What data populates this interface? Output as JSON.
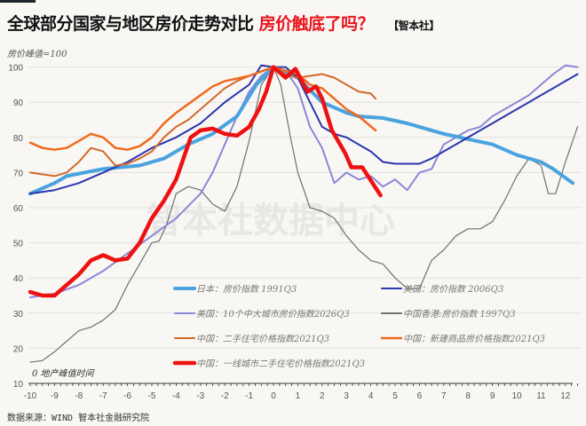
{
  "header": {
    "title_main": "全球部分国家与地区房价走势对比",
    "title_highlight": "房价触底了吗？",
    "title_tag": "【智本社】"
  },
  "unit_label": "房价峰值=100",
  "x_note": "0 地产峰值时间",
  "watermark": "智本社数据中心",
  "source": "数据来源：WIND 智本社金融研究院",
  "chart_data": {
    "type": "line",
    "title": "全球部分国家与地区房价走势对比 房价触底了吗？",
    "xlabel": "0 地产峰值时间",
    "ylabel": "房价峰值=100",
    "xlim": [
      -10,
      12.5
    ],
    "ylim": [
      10,
      100
    ],
    "xticks": [
      -10,
      -9,
      -8,
      -7,
      -6,
      -5,
      -4,
      -3,
      -2,
      -1,
      0,
      1,
      2,
      3,
      4,
      5,
      6,
      7,
      8,
      9,
      10,
      11,
      12
    ],
    "yticks": [
      10,
      20,
      30,
      40,
      50,
      60,
      70,
      80,
      90,
      100
    ],
    "grid": true,
    "legend_position": "bottom-center",
    "series": [
      {
        "name": "日本：房价指数 1991Q3",
        "color": "#4aa3df",
        "width": 4,
        "points": [
          [
            -10,
            64
          ],
          [
            -9,
            67
          ],
          [
            -8.5,
            69
          ],
          [
            -7,
            71
          ],
          [
            -5.5,
            72
          ],
          [
            -4.5,
            74
          ],
          [
            -3.5,
            78
          ],
          [
            -2.5,
            81
          ],
          [
            -1.5,
            86
          ],
          [
            -0.7,
            95
          ],
          [
            0,
            100
          ],
          [
            1,
            97
          ],
          [
            2,
            90
          ],
          [
            3,
            87
          ],
          [
            3.5,
            86
          ],
          [
            4.5,
            85.5
          ],
          [
            5.5,
            84
          ],
          [
            6.5,
            82
          ],
          [
            7,
            81
          ],
          [
            8,
            79.5
          ],
          [
            9,
            78
          ],
          [
            10,
            75
          ],
          [
            11,
            73
          ],
          [
            11.5,
            71
          ],
          [
            12.3,
            67
          ]
        ]
      },
      {
        "name": "美国：房价指数 2006Q3",
        "color": "#2b35b0",
        "width": 2,
        "points": [
          [
            -10,
            64
          ],
          [
            -9,
            65
          ],
          [
            -8,
            67
          ],
          [
            -7,
            70
          ],
          [
            -6,
            73
          ],
          [
            -5,
            77
          ],
          [
            -4,
            80
          ],
          [
            -3,
            84
          ],
          [
            -2,
            90
          ],
          [
            -1,
            95
          ],
          [
            -0.5,
            100.5
          ],
          [
            0,
            100
          ],
          [
            0.5,
            100
          ],
          [
            1,
            97
          ],
          [
            1.5,
            90
          ],
          [
            2,
            83
          ],
          [
            2.5,
            81
          ],
          [
            3,
            80
          ],
          [
            3.5,
            78
          ],
          [
            4,
            76
          ],
          [
            4.5,
            73
          ],
          [
            5,
            72.5
          ],
          [
            6,
            72.5
          ],
          [
            6.5,
            74
          ],
          [
            7,
            76
          ],
          [
            7.5,
            78
          ],
          [
            8,
            80
          ],
          [
            8.5,
            82
          ],
          [
            9,
            84
          ],
          [
            9.5,
            86
          ],
          [
            10,
            88
          ],
          [
            10.5,
            90
          ],
          [
            11,
            92
          ],
          [
            11.5,
            94
          ],
          [
            12,
            96
          ],
          [
            12.5,
            98
          ]
        ]
      },
      {
        "name": "美国：10个中大城市房价指数2026Q3",
        "color": "#8c86d8",
        "width": 2,
        "points": [
          [
            -10,
            34.5
          ],
          [
            -9,
            35.5
          ],
          [
            -8,
            38
          ],
          [
            -7,
            42
          ],
          [
            -6,
            47
          ],
          [
            -5,
            52
          ],
          [
            -4,
            57
          ],
          [
            -3,
            64
          ],
          [
            -2.5,
            70
          ],
          [
            -2,
            78
          ],
          [
            -1.5,
            86
          ],
          [
            -1,
            93
          ],
          [
            -0.5,
            97.5
          ],
          [
            0,
            100
          ],
          [
            0.5,
            99
          ],
          [
            1,
            94
          ],
          [
            1.5,
            83
          ],
          [
            2,
            77
          ],
          [
            2.5,
            67
          ],
          [
            3,
            70
          ],
          [
            3.5,
            68
          ],
          [
            4,
            69
          ],
          [
            4.5,
            66
          ],
          [
            5,
            68
          ],
          [
            5.5,
            65
          ],
          [
            6,
            70
          ],
          [
            6.5,
            71
          ],
          [
            7,
            78
          ],
          [
            7.5,
            80
          ],
          [
            8,
            82
          ],
          [
            8.5,
            83
          ],
          [
            9,
            86
          ],
          [
            9.5,
            88
          ],
          [
            10,
            90
          ],
          [
            10.5,
            92
          ],
          [
            11,
            95
          ],
          [
            11.5,
            98
          ],
          [
            12,
            100.5
          ],
          [
            12.5,
            100
          ]
        ]
      },
      {
        "name": "中国香港:房价指数 1997Q3",
        "color": "#707070",
        "width": 1.2,
        "points": [
          [
            -10,
            16
          ],
          [
            -9.5,
            16.5
          ],
          [
            -9,
            19
          ],
          [
            -8.5,
            22
          ],
          [
            -8,
            25
          ],
          [
            -7.5,
            26
          ],
          [
            -7,
            28
          ],
          [
            -6.5,
            31
          ],
          [
            -6,
            38
          ],
          [
            -5.5,
            44
          ],
          [
            -5,
            50
          ],
          [
            -4.7,
            50.5
          ],
          [
            -4.4,
            55
          ],
          [
            -4,
            64
          ],
          [
            -3.5,
            66
          ],
          [
            -3,
            65
          ],
          [
            -2.5,
            61
          ],
          [
            -2,
            59
          ],
          [
            -1.5,
            66
          ],
          [
            -1,
            79
          ],
          [
            -0.5,
            95
          ],
          [
            0,
            100
          ],
          [
            0.3,
            95
          ],
          [
            0.7,
            80
          ],
          [
            1,
            70
          ],
          [
            1.5,
            60
          ],
          [
            2,
            59
          ],
          [
            2.5,
            57
          ],
          [
            3,
            52
          ],
          [
            3.5,
            48
          ],
          [
            4,
            45
          ],
          [
            4.5,
            44
          ],
          [
            5,
            40
          ],
          [
            5.5,
            37
          ],
          [
            6,
            37
          ],
          [
            6.5,
            45
          ],
          [
            7,
            48
          ],
          [
            7.5,
            52
          ],
          [
            8,
            54
          ],
          [
            8.5,
            54
          ],
          [
            9,
            56
          ],
          [
            9.5,
            62
          ],
          [
            10,
            69
          ],
          [
            10.5,
            74
          ],
          [
            11,
            72
          ],
          [
            11.3,
            64
          ],
          [
            11.6,
            64
          ],
          [
            12,
            73
          ],
          [
            12.5,
            83
          ]
        ]
      },
      {
        "name": "中国：二手住宅价格指数2021Q3",
        "color": "#d2692a",
        "width": 2,
        "points": [
          [
            -10,
            70
          ],
          [
            -9,
            69
          ],
          [
            -8.5,
            70
          ],
          [
            -8,
            73
          ],
          [
            -7.5,
            77
          ],
          [
            -7,
            76
          ],
          [
            -6.5,
            72
          ],
          [
            -6,
            72.5
          ],
          [
            -5.5,
            74
          ],
          [
            -5,
            76
          ],
          [
            -4.5,
            80
          ],
          [
            -4,
            83
          ],
          [
            -3.5,
            85
          ],
          [
            -3,
            88
          ],
          [
            -2.5,
            91
          ],
          [
            -2,
            94
          ],
          [
            -1.5,
            96
          ],
          [
            -1,
            97.5
          ],
          [
            0,
            100
          ],
          [
            0.5,
            98
          ],
          [
            1,
            97
          ],
          [
            1.5,
            97.5
          ],
          [
            2,
            98
          ],
          [
            2.5,
            97
          ],
          [
            3,
            95
          ],
          [
            3.5,
            93
          ],
          [
            4,
            92.5
          ],
          [
            4.2,
            91
          ]
        ]
      },
      {
        "name": "中国：新建商品房价格指数2021Q3",
        "color": "#f06a1e",
        "width": 2.5,
        "points": [
          [
            -10,
            78.5
          ],
          [
            -9.5,
            77
          ],
          [
            -9,
            76.5
          ],
          [
            -8.5,
            77
          ],
          [
            -8,
            79
          ],
          [
            -7.5,
            81
          ],
          [
            -7,
            80
          ],
          [
            -6.5,
            77
          ],
          [
            -6,
            76.5
          ],
          [
            -5.5,
            77.5
          ],
          [
            -5,
            80
          ],
          [
            -4.5,
            84
          ],
          [
            -4,
            87
          ],
          [
            -3.5,
            89.5
          ],
          [
            -3,
            92
          ],
          [
            -2.5,
            94.5
          ],
          [
            -2,
            96
          ],
          [
            -1,
            97.5
          ],
          [
            0,
            100
          ],
          [
            0.5,
            99
          ],
          [
            1,
            98
          ],
          [
            1.5,
            95
          ],
          [
            2,
            94
          ],
          [
            2.5,
            91
          ],
          [
            3,
            88
          ],
          [
            3.5,
            86
          ],
          [
            4.2,
            82
          ]
        ]
      },
      {
        "name": "中国：一线城市二手住宅价格指数2021Q3",
        "color": "#ee1111",
        "width": 4.5,
        "points": [
          [
            -10,
            36
          ],
          [
            -9.5,
            35
          ],
          [
            -9,
            35
          ],
          [
            -8.5,
            38
          ],
          [
            -8,
            41
          ],
          [
            -7.5,
            45
          ],
          [
            -7,
            46.5
          ],
          [
            -6.5,
            45
          ],
          [
            -6,
            45.5
          ],
          [
            -5.5,
            50
          ],
          [
            -5,
            57
          ],
          [
            -4.5,
            62
          ],
          [
            -4,
            68
          ],
          [
            -3.7,
            74
          ],
          [
            -3.4,
            80
          ],
          [
            -3,
            82
          ],
          [
            -2.5,
            82.5
          ],
          [
            -2,
            81
          ],
          [
            -1.5,
            80.5
          ],
          [
            -1,
            83
          ],
          [
            -0.6,
            88
          ],
          [
            -0.3,
            93
          ],
          [
            0,
            100
          ],
          [
            0.5,
            97
          ],
          [
            0.9,
            99.5
          ],
          [
            1.4,
            93
          ],
          [
            1.75,
            94.5
          ],
          [
            2,
            91
          ],
          [
            2.4,
            82
          ],
          [
            2.95,
            75.5
          ],
          [
            3.2,
            71.5
          ],
          [
            3.65,
            71.5
          ],
          [
            4.4,
            63.5
          ]
        ]
      }
    ]
  }
}
